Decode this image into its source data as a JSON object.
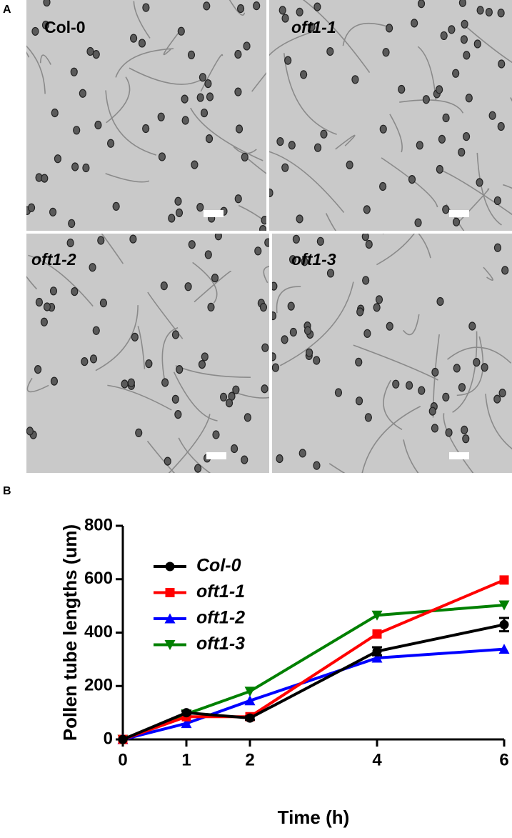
{
  "panel_a": {
    "label": "A",
    "images": [
      {
        "label": "Col-0"
      },
      {
        "label": "oft1-1"
      },
      {
        "label": "oft1-2"
      },
      {
        "label": "oft1-3"
      }
    ]
  },
  "panel_b_label": "B",
  "chart_data": {
    "type": "line",
    "x_label": "Time (h)",
    "y_label": "Pollen tube lengths (um)",
    "x": [
      0,
      1,
      2,
      4,
      6
    ],
    "series": [
      {
        "name": "Col-0",
        "color": "#000000",
        "marker": "circle",
        "values": [
          0,
          100,
          80,
          330,
          430
        ],
        "errors": [
          0,
          6,
          6,
          15,
          25
        ]
      },
      {
        "name": "oft1-1",
        "color": "#ff0000",
        "marker": "square",
        "values": [
          0,
          85,
          85,
          395,
          597
        ]
      },
      {
        "name": "oft1-2",
        "color": "#0000ff",
        "marker": "triangle-up",
        "values": [
          0,
          60,
          145,
          305,
          338
        ]
      },
      {
        "name": "oft1-3",
        "color": "#008000",
        "marker": "triangle-down",
        "values": [
          0,
          95,
          180,
          465,
          503
        ]
      }
    ],
    "xlim": [
      0,
      6
    ],
    "ylim": [
      0,
      800
    ],
    "xticks": [
      0,
      1,
      2,
      4,
      6
    ],
    "yticks": [
      0,
      200,
      400,
      600,
      800
    ],
    "legend": "upper-left",
    "grid": false
  }
}
